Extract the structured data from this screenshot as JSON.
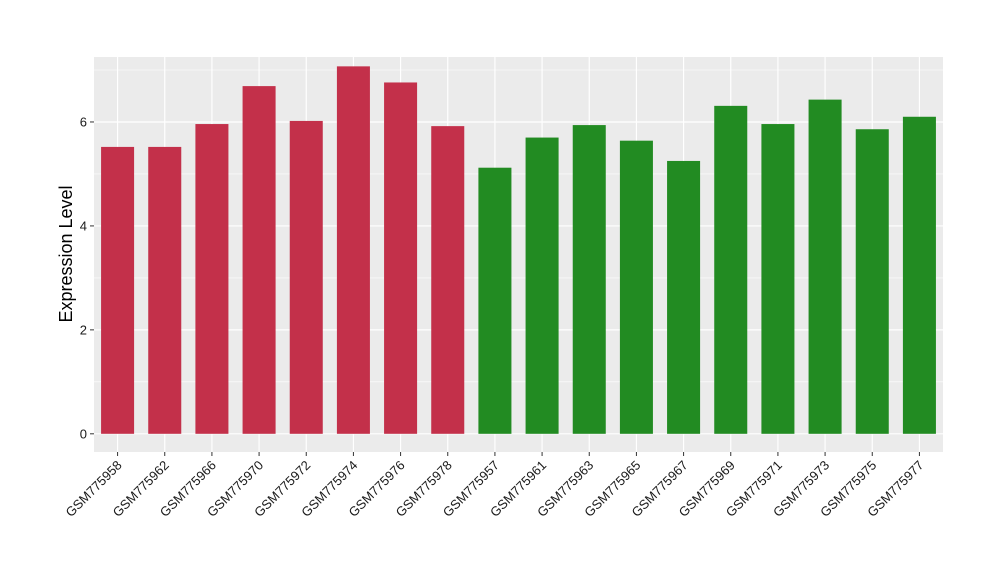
{
  "chart_data": {
    "type": "bar",
    "title": "",
    "xlabel": "",
    "ylabel": "Expression Level",
    "ylim": [
      -0.35,
      7.25
    ],
    "yticks": [
      0,
      2,
      4,
      6
    ],
    "grid": true,
    "legend": "none",
    "categories": [
      "GSM775958",
      "GSM775962",
      "GSM775966",
      "GSM775970",
      "GSM775972",
      "GSM775974",
      "GSM775976",
      "GSM775978",
      "GSM775957",
      "GSM775961",
      "GSM775963",
      "GSM775965",
      "GSM775967",
      "GSM775969",
      "GSM775971",
      "GSM775973",
      "GSM775975",
      "GSM775977"
    ],
    "values": [
      5.52,
      5.52,
      5.96,
      6.69,
      6.02,
      7.07,
      6.76,
      5.92,
      5.12,
      5.7,
      5.94,
      5.64,
      5.25,
      6.31,
      5.96,
      6.43,
      5.86,
      6.1
    ],
    "group_colors": [
      "#C3304A",
      "#C3304A",
      "#C3304A",
      "#C3304A",
      "#C3304A",
      "#C3304A",
      "#C3304A",
      "#C3304A",
      "#228B22",
      "#228B22",
      "#228B22",
      "#228B22",
      "#228B22",
      "#228B22",
      "#228B22",
      "#228B22",
      "#228B22",
      "#228B22"
    ],
    "panel_background": "#EBEBEB",
    "grid_color": "#FFFFFF"
  }
}
